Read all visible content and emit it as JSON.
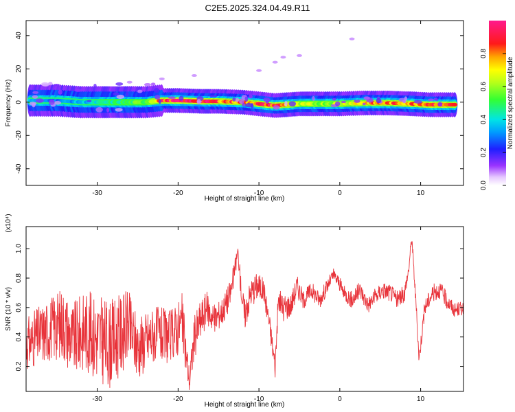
{
  "page": {
    "title": "C2E5.2025.324.04.49.R11"
  },
  "colors": {
    "trace": "#e8333a",
    "axis": "#000000"
  },
  "chart_data": [
    {
      "type": "heatmap",
      "xlabel": "Height of straight line (km)",
      "ylabel": "Frequency (Hz)",
      "xlim": [
        -38.8,
        15.3
      ],
      "ylim": [
        -50,
        49
      ],
      "xticks": [
        -30,
        -20,
        -10,
        0,
        10
      ],
      "yticks": [
        -40,
        -20,
        0,
        20,
        40
      ],
      "colorbar": {
        "label": "Normalized spectral amplitude",
        "range": [
          0,
          1
        ],
        "ticks": [
          0.0,
          0.2,
          0.4,
          0.6,
          0.8
        ],
        "tick_labels": [
          "0.0",
          "0.2",
          "0.4",
          "0.6",
          "0.8"
        ]
      },
      "ridge": {
        "description_points_x": [
          -38,
          -35,
          -32,
          -28,
          -24,
          -22,
          -20,
          -17,
          -15,
          -12,
          -10,
          -8,
          -5,
          -2,
          0,
          3,
          6,
          9,
          11,
          14
        ],
        "freq_hz": [
          1,
          1,
          0,
          0,
          0,
          1,
          1,
          0.5,
          0.5,
          0,
          -1,
          -2,
          -1,
          -1,
          -1,
          -0.5,
          -0.5,
          -1,
          -1.5,
          -1.5
        ],
        "amplitude": [
          0.35,
          0.3,
          0.35,
          0.45,
          0.55,
          0.85,
          0.95,
          0.9,
          0.85,
          0.8,
          0.85,
          0.9,
          0.6,
          0.6,
          0.65,
          0.75,
          0.8,
          0.8,
          0.9,
          0.85
        ]
      }
    },
    {
      "type": "line",
      "xlabel": "Height of straight line (km)",
      "ylabel": "SNR (10 * v/v)",
      "y_multiplier_label": "(x10⁴)",
      "xlim": [
        -38.8,
        15.3
      ],
      "ylim": [
        0.03,
        1.15
      ],
      "xticks": [
        -30,
        -20,
        -10,
        0,
        10
      ],
      "yticks": [
        0.2,
        0.4,
        0.6,
        0.8,
        1.0
      ],
      "ytick_labels": [
        "0.2",
        "0.4",
        "0.6",
        "0.8",
        "1.0"
      ],
      "series": [
        {
          "x": [
            -38.8,
            -37.5,
            -36,
            -34.3,
            -33,
            -31.5,
            -30,
            -28.5,
            -27,
            -26.2,
            -25,
            -23,
            -21,
            -19.5,
            -18.6,
            -18,
            -17.3,
            -16.5,
            -15.5,
            -14.5,
            -13.5,
            -12.6,
            -12.2,
            -11.8,
            -11,
            -10.2,
            -9.4,
            -8.6,
            -8,
            -7.6,
            -7,
            -6,
            -5.3,
            -4.5,
            -3.5,
            -2.5,
            -1.5,
            -0.8,
            -0.2,
            0.5,
            1.5,
            2.5,
            3.5,
            4.5,
            5.3,
            6.3,
            7.2,
            8.0,
            8.5,
            8.9,
            9.4,
            9.8,
            10.5,
            11.5,
            12.4,
            13.2,
            14.2,
            15.3
          ],
          "y": [
            0.35,
            0.4,
            0.45,
            0.5,
            0.38,
            0.45,
            0.4,
            0.35,
            0.42,
            0.48,
            0.33,
            0.42,
            0.4,
            0.5,
            0.1,
            0.4,
            0.5,
            0.6,
            0.52,
            0.58,
            0.7,
            0.98,
            0.72,
            0.55,
            0.7,
            0.75,
            0.72,
            0.45,
            0.2,
            0.65,
            0.6,
            0.62,
            0.75,
            0.65,
            0.72,
            0.65,
            0.75,
            0.82,
            0.78,
            0.7,
            0.65,
            0.72,
            0.62,
            0.68,
            0.72,
            0.7,
            0.65,
            0.7,
            0.85,
            1.08,
            0.65,
            0.25,
            0.6,
            0.7,
            0.72,
            0.65,
            0.58,
            0.6
          ],
          "jitter": [
            0.18,
            0.2,
            0.22,
            0.25,
            0.25,
            0.28,
            0.3,
            0.3,
            0.28,
            0.25,
            0.22,
            0.2,
            0.18,
            0.2,
            0.1,
            0.15,
            0.15,
            0.12,
            0.1,
            0.1,
            0.1,
            0.05,
            0.08,
            0.12,
            0.1,
            0.1,
            0.08,
            0.08,
            0.08,
            0.08,
            0.1,
            0.08,
            0.08,
            0.06,
            0.06,
            0.06,
            0.05,
            0.05,
            0.05,
            0.05,
            0.06,
            0.06,
            0.06,
            0.06,
            0.06,
            0.06,
            0.06,
            0.06,
            0.05,
            0.04,
            0.05,
            0.05,
            0.06,
            0.06,
            0.06,
            0.06,
            0.05,
            0.05
          ]
        }
      ]
    }
  ]
}
